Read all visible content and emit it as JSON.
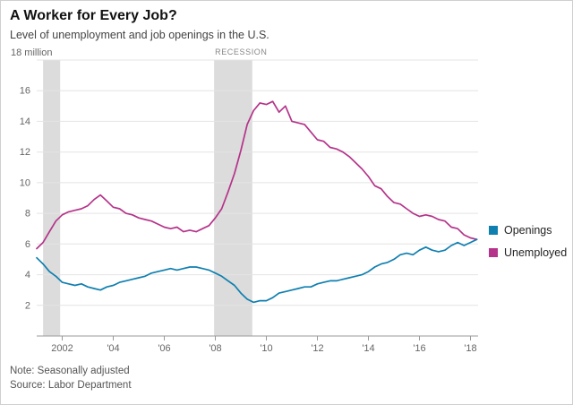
{
  "header": {
    "title": "A Worker for Every Job?",
    "subtitle": "Level of unemployment and job openings in the U.S."
  },
  "footer": {
    "note": "Note: Seasonally adjusted",
    "source": "Source: Labor Department"
  },
  "chart_data": {
    "type": "line",
    "title": "A Worker for Every Job?",
    "subtitle": "Level of unemployment and job openings in the U.S.",
    "unit_label": "18 million",
    "x_range": [
      2001,
      2018.3
    ],
    "y_range": [
      0,
      18
    ],
    "y_ticks": [
      2,
      4,
      6,
      8,
      10,
      12,
      14,
      16,
      18
    ],
    "x_ticks": [
      {
        "x": 2002,
        "label": "2002"
      },
      {
        "x": 2004,
        "label": "'04"
      },
      {
        "x": 2006,
        "label": "'06"
      },
      {
        "x": 2008,
        "label": "'08"
      },
      {
        "x": 2010,
        "label": "'10"
      },
      {
        "x": 2012,
        "label": "'12"
      },
      {
        "x": 2014,
        "label": "'14"
      },
      {
        "x": 2016,
        "label": "'16"
      },
      {
        "x": 2018,
        "label": "'18"
      }
    ],
    "grid": true,
    "legend_position": "right",
    "recessions": [
      {
        "start": 2001.25,
        "end": 2001.92,
        "label": ""
      },
      {
        "start": 2007.95,
        "end": 2009.45,
        "label": "RECESSION"
      }
    ],
    "colors": {
      "openings": "#0f7fb0",
      "unemployed": "#b5338a",
      "recession_band": "#dcdcdc"
    },
    "x": [
      2001,
      2001.25,
      2001.5,
      2001.75,
      2002,
      2002.25,
      2002.5,
      2002.75,
      2003,
      2003.25,
      2003.5,
      2003.75,
      2004,
      2004.25,
      2004.5,
      2004.75,
      2005,
      2005.25,
      2005.5,
      2005.75,
      2006,
      2006.25,
      2006.5,
      2006.75,
      2007,
      2007.25,
      2007.5,
      2007.75,
      2008,
      2008.25,
      2008.5,
      2008.75,
      2009,
      2009.25,
      2009.5,
      2009.75,
      2010,
      2010.25,
      2010.5,
      2010.75,
      2011,
      2011.25,
      2011.5,
      2011.75,
      2012,
      2012.25,
      2012.5,
      2012.75,
      2013,
      2013.25,
      2013.5,
      2013.75,
      2014,
      2014.25,
      2014.5,
      2014.75,
      2015,
      2015.25,
      2015.5,
      2015.75,
      2016,
      2016.25,
      2016.5,
      2016.75,
      2017,
      2017.25,
      2017.5,
      2017.75,
      2018,
      2018.25
    ],
    "series": [
      {
        "name": "Openings",
        "color": "#0f7fb0",
        "values": [
          5.1,
          4.7,
          4.2,
          3.9,
          3.5,
          3.4,
          3.3,
          3.4,
          3.2,
          3.1,
          3.0,
          3.2,
          3.3,
          3.5,
          3.6,
          3.7,
          3.8,
          3.9,
          4.1,
          4.2,
          4.3,
          4.4,
          4.3,
          4.4,
          4.5,
          4.5,
          4.4,
          4.3,
          4.1,
          3.9,
          3.6,
          3.3,
          2.8,
          2.4,
          2.2,
          2.3,
          2.3,
          2.5,
          2.8,
          2.9,
          3.0,
          3.1,
          3.2,
          3.2,
          3.4,
          3.5,
          3.6,
          3.6,
          3.7,
          3.8,
          3.9,
          4.0,
          4.2,
          4.5,
          4.7,
          4.8,
          5.0,
          5.3,
          5.4,
          5.3,
          5.6,
          5.8,
          5.6,
          5.5,
          5.6,
          5.9,
          6.1,
          5.9,
          6.1,
          6.3
        ]
      },
      {
        "name": "Unemployed",
        "color": "#b5338a",
        "values": [
          5.7,
          6.1,
          6.8,
          7.5,
          7.9,
          8.1,
          8.2,
          8.3,
          8.5,
          8.9,
          9.2,
          8.8,
          8.4,
          8.3,
          8.0,
          7.9,
          7.7,
          7.6,
          7.5,
          7.3,
          7.1,
          7.0,
          7.1,
          6.8,
          6.9,
          6.8,
          7.0,
          7.2,
          7.7,
          8.3,
          9.4,
          10.6,
          12.1,
          13.8,
          14.7,
          15.2,
          15.1,
          15.3,
          14.6,
          15.0,
          14.0,
          13.9,
          13.8,
          13.3,
          12.8,
          12.7,
          12.3,
          12.2,
          12.0,
          11.7,
          11.3,
          10.9,
          10.4,
          9.8,
          9.6,
          9.1,
          8.7,
          8.6,
          8.3,
          8.0,
          7.8,
          7.9,
          7.8,
          7.6,
          7.5,
          7.1,
          7.0,
          6.6,
          6.4,
          6.3
        ]
      }
    ]
  }
}
